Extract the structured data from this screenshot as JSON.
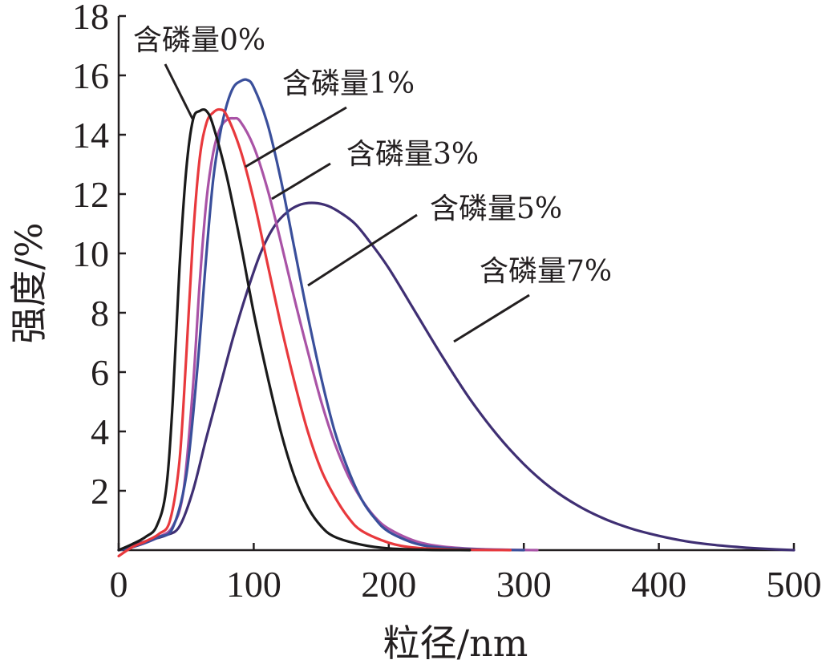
{
  "chart_data": {
    "type": "line",
    "xlabel": "粒径/nm",
    "ylabel": "强度/%",
    "xlim": [
      0,
      500
    ],
    "ylim": [
      0,
      18
    ],
    "xticks": [
      0,
      100,
      200,
      300,
      400,
      500
    ],
    "yticks": [
      2,
      4,
      6,
      8,
      10,
      12,
      14,
      16,
      18
    ],
    "grid": false,
    "legend": "none",
    "series": [
      {
        "name": "含磷量0%",
        "color": "#1a1a1a",
        "points": [
          [
            0,
            0
          ],
          [
            10,
            0.2
          ],
          [
            20,
            0.45
          ],
          [
            28,
            0.8
          ],
          [
            35,
            2.0
          ],
          [
            40,
            5.0
          ],
          [
            45,
            9.5
          ],
          [
            50,
            12.8
          ],
          [
            55,
            14.5
          ],
          [
            60,
            14.8
          ],
          [
            65,
            14.8
          ],
          [
            70,
            14.3
          ],
          [
            80,
            12.6
          ],
          [
            90,
            10.4
          ],
          [
            100,
            8.0
          ],
          [
            110,
            5.9
          ],
          [
            120,
            4.0
          ],
          [
            130,
            2.5
          ],
          [
            140,
            1.45
          ],
          [
            150,
            0.8
          ],
          [
            160,
            0.45
          ],
          [
            180,
            0.18
          ],
          [
            200,
            0.06
          ],
          [
            230,
            0.01
          ],
          [
            260,
            0
          ]
        ]
      },
      {
        "name": "含磷量1%",
        "color": "#e8393d",
        "points": [
          [
            0,
            -0.2
          ],
          [
            10,
            0.1
          ],
          [
            20,
            0.3
          ],
          [
            30,
            0.55
          ],
          [
            38,
            1.0
          ],
          [
            45,
            3.0
          ],
          [
            50,
            6.5
          ],
          [
            55,
            10.5
          ],
          [
            60,
            13.2
          ],
          [
            65,
            14.4
          ],
          [
            70,
            14.75
          ],
          [
            75,
            14.85
          ],
          [
            80,
            14.65
          ],
          [
            90,
            13.5
          ],
          [
            100,
            11.8
          ],
          [
            110,
            9.7
          ],
          [
            120,
            7.6
          ],
          [
            130,
            5.7
          ],
          [
            140,
            4.0
          ],
          [
            150,
            2.7
          ],
          [
            160,
            1.8
          ],
          [
            170,
            1.1
          ],
          [
            180,
            0.65
          ],
          [
            200,
            0.25
          ],
          [
            220,
            0.08
          ],
          [
            250,
            0.02
          ],
          [
            290,
            0
          ]
        ]
      },
      {
        "name": "含磷量3%",
        "color": "#a953a6",
        "points": [
          [
            0,
            0
          ],
          [
            10,
            0.1
          ],
          [
            20,
            0.25
          ],
          [
            30,
            0.45
          ],
          [
            40,
            0.8
          ],
          [
            48,
            2.0
          ],
          [
            55,
            5.5
          ],
          [
            60,
            9.0
          ],
          [
            65,
            11.8
          ],
          [
            70,
            13.4
          ],
          [
            75,
            14.2
          ],
          [
            80,
            14.5
          ],
          [
            85,
            14.55
          ],
          [
            90,
            14.45
          ],
          [
            100,
            13.6
          ],
          [
            110,
            12.2
          ],
          [
            120,
            10.4
          ],
          [
            130,
            8.5
          ],
          [
            140,
            6.7
          ],
          [
            150,
            5.0
          ],
          [
            160,
            3.6
          ],
          [
            170,
            2.5
          ],
          [
            180,
            1.7
          ],
          [
            190,
            1.1
          ],
          [
            200,
            0.72
          ],
          [
            220,
            0.3
          ],
          [
            240,
            0.12
          ],
          [
            270,
            0.03
          ],
          [
            310,
            0
          ]
        ]
      },
      {
        "name": "含磷量5%",
        "color": "#3a4f9b",
        "points": [
          [
            0,
            0
          ],
          [
            10,
            0.1
          ],
          [
            20,
            0.25
          ],
          [
            30,
            0.45
          ],
          [
            40,
            0.75
          ],
          [
            50,
            2.5
          ],
          [
            58,
            6.0
          ],
          [
            65,
            10.0
          ],
          [
            70,
            12.5
          ],
          [
            75,
            14.0
          ],
          [
            80,
            15.0
          ],
          [
            85,
            15.6
          ],
          [
            90,
            15.8
          ],
          [
            95,
            15.85
          ],
          [
            100,
            15.6
          ],
          [
            110,
            14.4
          ],
          [
            120,
            12.5
          ],
          [
            130,
            10.2
          ],
          [
            140,
            7.9
          ],
          [
            150,
            5.8
          ],
          [
            160,
            4.0
          ],
          [
            170,
            2.7
          ],
          [
            180,
            1.7
          ],
          [
            190,
            1.05
          ],
          [
            200,
            0.62
          ],
          [
            220,
            0.22
          ],
          [
            240,
            0.08
          ],
          [
            270,
            0.02
          ],
          [
            300,
            0
          ]
        ]
      },
      {
        "name": "含磷量7%",
        "color": "#3f2f73",
        "points": [
          [
            0,
            0
          ],
          [
            20,
            0.3
          ],
          [
            35,
            0.5
          ],
          [
            45,
            0.8
          ],
          [
            55,
            2.0
          ],
          [
            65,
            3.8
          ],
          [
            75,
            5.5
          ],
          [
            85,
            7.2
          ],
          [
            95,
            8.7
          ],
          [
            105,
            10.0
          ],
          [
            115,
            10.9
          ],
          [
            125,
            11.4
          ],
          [
            135,
            11.65
          ],
          [
            145,
            11.7
          ],
          [
            155,
            11.6
          ],
          [
            165,
            11.35
          ],
          [
            175,
            11.0
          ],
          [
            185,
            10.45
          ],
          [
            200,
            9.5
          ],
          [
            220,
            8.0
          ],
          [
            240,
            6.5
          ],
          [
            260,
            5.1
          ],
          [
            280,
            3.9
          ],
          [
            300,
            2.9
          ],
          [
            320,
            2.1
          ],
          [
            340,
            1.5
          ],
          [
            360,
            1.05
          ],
          [
            380,
            0.72
          ],
          [
            400,
            0.48
          ],
          [
            420,
            0.3
          ],
          [
            440,
            0.18
          ],
          [
            460,
            0.1
          ],
          [
            480,
            0.04
          ],
          [
            500,
            0
          ]
        ]
      }
    ]
  }
}
